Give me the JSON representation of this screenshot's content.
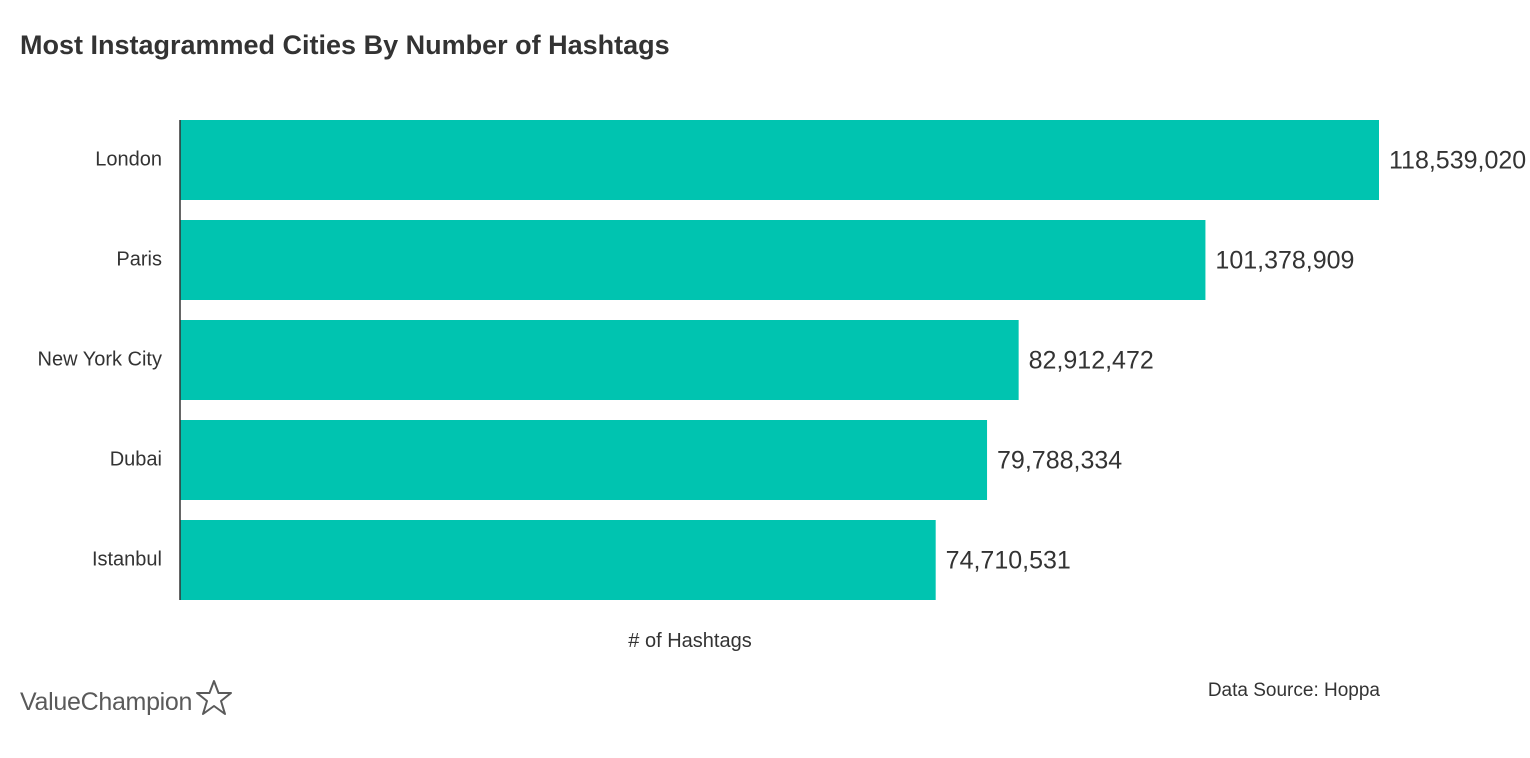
{
  "chart_data": {
    "type": "bar",
    "orientation": "horizontal",
    "title": "Most Instagrammed Cities By Number of Hashtags",
    "xlabel": "# of Hashtags",
    "ylabel": "",
    "categories": [
      "London",
      "Paris",
      "New York City",
      "Dubai",
      "Istanbul"
    ],
    "values": [
      118539020,
      101378909,
      82912472,
      79788334,
      74710531
    ],
    "value_labels": [
      "118,539,020",
      "101,378,909",
      "82,912,472",
      "79,788,334",
      "74,710,531"
    ],
    "xlim": [
      0,
      118539020
    ],
    "grid": false,
    "legend": "none",
    "bar_color": "#00c4b0"
  },
  "footer": {
    "source": "Data Source: Hoppa",
    "brand": "ValueChampion"
  },
  "icons": {
    "brand_icon": "star-outline-icon"
  },
  "colors": {
    "bar": "#00c4b0",
    "text": "#333333",
    "axis": "#333333"
  }
}
